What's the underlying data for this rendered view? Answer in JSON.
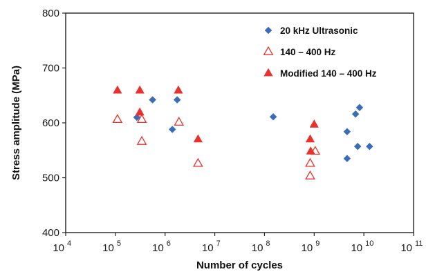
{
  "chart_data": {
    "type": "scatter",
    "xlabel": "Number of cycles",
    "ylabel": "Stress amplitude (MPa)",
    "x_scale": "log",
    "xlim": [
      10000,
      100000000000
    ],
    "ylim": [
      400,
      800
    ],
    "grid": false,
    "legend_position": "top-right",
    "x_ticks": [
      {
        "base": "10",
        "exp": "4"
      },
      {
        "base": "10",
        "exp": "5"
      },
      {
        "base": "10",
        "exp": "6"
      },
      {
        "base": "10",
        "exp": "7"
      },
      {
        "base": "10",
        "exp": "8"
      },
      {
        "base": "10",
        "exp": "9"
      },
      {
        "base": "10",
        "exp": "10"
      },
      {
        "base": "10",
        "exp": "11"
      }
    ],
    "y_ticks": [
      "400",
      "500",
      "600",
      "700",
      "800"
    ],
    "series": [
      {
        "name": "20 kHz Ultrasonic",
        "marker": "diamond-filled",
        "color": "#3a6db5",
        "points": [
          [
            270000,
            610
          ],
          [
            560000,
            642
          ],
          [
            1400000,
            588
          ],
          [
            1750000,
            642
          ],
          [
            150000000,
            611
          ],
          [
            4600000000,
            584
          ],
          [
            4600000000,
            535
          ],
          [
            6800000000,
            616
          ],
          [
            7500000000,
            557
          ],
          [
            8200000000,
            628
          ],
          [
            13000000000,
            557
          ]
        ]
      },
      {
        "name": "140 – 400 Hz",
        "marker": "triangle-open",
        "color": "#e8322e",
        "points": [
          [
            110000,
            606
          ],
          [
            340000,
            606
          ],
          [
            340000,
            566
          ],
          [
            1900000,
            601
          ],
          [
            4600000,
            526
          ],
          [
            830000000,
            526
          ],
          [
            830000000,
            503
          ],
          [
            1050000000,
            548
          ]
        ]
      },
      {
        "name": "Modified 140 – 400 Hz",
        "marker": "triangle-filled",
        "color": "#e8322e",
        "points": [
          [
            110000,
            659
          ],
          [
            310000,
            659
          ],
          [
            310000,
            619
          ],
          [
            1850000,
            659
          ],
          [
            4600000,
            570
          ],
          [
            830000000,
            570
          ],
          [
            850000000,
            548
          ],
          [
            1000000000,
            597
          ]
        ]
      }
    ]
  }
}
